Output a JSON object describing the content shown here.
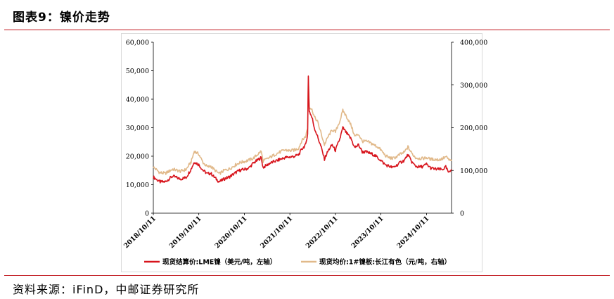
{
  "header": {
    "title": "图表9：镍价走势"
  },
  "footer": {
    "source": "资料来源：iFinD，中邮证券研究所"
  },
  "chart_data": {
    "type": "line",
    "x_tick_labels": [
      "2018/10/11",
      "2019/10/11",
      "2020/10/11",
      "2021/10/11",
      "2022/10/11",
      "2023/10/11",
      "2024/10/11"
    ],
    "x_range": [
      "2018/10/11",
      "2025/04/30"
    ],
    "y_left": {
      "ylim": [
        0,
        60000
      ],
      "ticks": [
        0,
        10000,
        20000,
        30000,
        40000,
        50000,
        60000
      ],
      "tick_labels": [
        "0",
        "10,000",
        "20,000",
        "30,000",
        "40,000",
        "50,000",
        "60,000"
      ]
    },
    "y_right": {
      "ylim": [
        0,
        400000
      ],
      "ticks": [
        0,
        100000,
        200000,
        300000,
        400000
      ],
      "tick_labels": [
        "0",
        "100,000",
        "200,000",
        "300,000",
        "400,000"
      ]
    },
    "grid": false,
    "legend_position": "bottom",
    "series": [
      {
        "name": "现货结算价:LME镍（美元/吨，左轴）",
        "axis": "left",
        "color": "#d7141c",
        "points": [
          [
            "2018/10/11",
            12700
          ],
          [
            "2018/12/01",
            11000
          ],
          [
            "2019/01/15",
            11000
          ],
          [
            "2019/03/15",
            13000
          ],
          [
            "2019/05/15",
            12000
          ],
          [
            "2019/07/01",
            12500
          ],
          [
            "2019/08/10",
            15500
          ],
          [
            "2019/09/05",
            18000
          ],
          [
            "2019/10/11",
            17000
          ],
          [
            "2019/11/15",
            15000
          ],
          [
            "2019/12/20",
            13800
          ],
          [
            "2020/01/15",
            14000
          ],
          [
            "2020/02/15",
            12500
          ],
          [
            "2020/03/23",
            11000
          ],
          [
            "2020/05/01",
            12000
          ],
          [
            "2020/06/15",
            12800
          ],
          [
            "2020/08/01",
            14200
          ],
          [
            "2020/09/01",
            15000
          ],
          [
            "2020/10/11",
            15400
          ],
          [
            "2020/11/15",
            15800
          ],
          [
            "2020/12/20",
            17500
          ],
          [
            "2021/02/22",
            19500
          ],
          [
            "2021/03/10",
            16000
          ],
          [
            "2021/05/01",
            17500
          ],
          [
            "2021/07/01",
            18500
          ],
          [
            "2021/09/01",
            19500
          ],
          [
            "2021/10/11",
            19700
          ],
          [
            "2021/11/20",
            20000
          ],
          [
            "2021/12/20",
            20500
          ],
          [
            "2022/01/15",
            22500
          ],
          [
            "2022/02/15",
            24000
          ],
          [
            "2022/03/02",
            28000
          ],
          [
            "2022/03/08",
            48000
          ],
          [
            "2022/03/15",
            36000
          ],
          [
            "2022/04/10",
            33000
          ],
          [
            "2022/04/25",
            30000
          ],
          [
            "2022/05/20",
            27000
          ],
          [
            "2022/06/20",
            23000
          ],
          [
            "2022/07/15",
            19000
          ],
          [
            "2022/08/15",
            22000
          ],
          [
            "2022/09/15",
            24000
          ],
          [
            "2022/10/11",
            22000
          ],
          [
            "2022/11/15",
            26000
          ],
          [
            "2022/12/10",
            30000
          ],
          [
            "2023/01/10",
            28000
          ],
          [
            "2023/02/15",
            26000
          ],
          [
            "2023/03/15",
            23000
          ],
          [
            "2023/04/15",
            24000
          ],
          [
            "2023/05/15",
            21500
          ],
          [
            "2023/06/15",
            21500
          ],
          [
            "2023/07/15",
            21000
          ],
          [
            "2023/08/15",
            20500
          ],
          [
            "2023/09/15",
            19500
          ],
          [
            "2023/10/11",
            18500
          ],
          [
            "2023/11/15",
            17000
          ],
          [
            "2023/12/15",
            16500
          ],
          [
            "2024/01/15",
            16000
          ],
          [
            "2024/02/15",
            16800
          ],
          [
            "2024/03/15",
            17800
          ],
          [
            "2024/04/15",
            18500
          ],
          [
            "2024/05/15",
            20500
          ],
          [
            "2024/06/15",
            18000
          ],
          [
            "2024/07/15",
            16500
          ],
          [
            "2024/08/15",
            16200
          ],
          [
            "2024/09/15",
            16400
          ],
          [
            "2024/10/11",
            17200
          ],
          [
            "2024/11/15",
            15800
          ],
          [
            "2024/12/15",
            15500
          ],
          [
            "2025/01/15",
            15400
          ],
          [
            "2025/02/15",
            15300
          ],
          [
            "2025/03/15",
            16200
          ],
          [
            "2025/04/09",
            14000
          ],
          [
            "2025/04/30",
            15400
          ]
        ]
      },
      {
        "name": "现货均价:1#镍板:长江有色（元/吨，右轴）",
        "axis": "right",
        "color": "#e1b98a",
        "points": [
          [
            "2018/10/11",
            108000
          ],
          [
            "2018/12/01",
            95000
          ],
          [
            "2019/01/15",
            93000
          ],
          [
            "2019/03/15",
            103000
          ],
          [
            "2019/05/15",
            98000
          ],
          [
            "2019/07/01",
            102000
          ],
          [
            "2019/08/10",
            120000
          ],
          [
            "2019/09/05",
            145000
          ],
          [
            "2019/10/11",
            138000
          ],
          [
            "2019/11/15",
            118000
          ],
          [
            "2019/12/20",
            108000
          ],
          [
            "2020/01/15",
            110000
          ],
          [
            "2020/02/15",
            101000
          ],
          [
            "2020/03/23",
            92000
          ],
          [
            "2020/05/01",
            100000
          ],
          [
            "2020/06/15",
            104000
          ],
          [
            "2020/08/01",
            113000
          ],
          [
            "2020/09/01",
            118000
          ],
          [
            "2020/10/11",
            121000
          ],
          [
            "2020/11/15",
            124000
          ],
          [
            "2020/12/20",
            128000
          ],
          [
            "2021/02/22",
            145000
          ],
          [
            "2021/03/10",
            122000
          ],
          [
            "2021/05/01",
            130000
          ],
          [
            "2021/07/01",
            140000
          ],
          [
            "2021/09/01",
            148000
          ],
          [
            "2021/10/11",
            146000
          ],
          [
            "2021/11/20",
            148000
          ],
          [
            "2021/12/20",
            152000
          ],
          [
            "2022/01/15",
            170000
          ],
          [
            "2022/02/15",
            180000
          ],
          [
            "2022/03/02",
            200000
          ],
          [
            "2022/03/08",
            320000
          ],
          [
            "2022/03/15",
            250000
          ],
          [
            "2022/04/10",
            240000
          ],
          [
            "2022/04/25",
            225000
          ],
          [
            "2022/05/20",
            215000
          ],
          [
            "2022/06/20",
            185000
          ],
          [
            "2022/07/15",
            160000
          ],
          [
            "2022/08/15",
            180000
          ],
          [
            "2022/09/15",
            195000
          ],
          [
            "2022/10/11",
            190000
          ],
          [
            "2022/11/15",
            215000
          ],
          [
            "2022/12/10",
            240000
          ],
          [
            "2023/01/10",
            225000
          ],
          [
            "2023/02/15",
            205000
          ],
          [
            "2023/03/15",
            180000
          ],
          [
            "2023/04/15",
            185000
          ],
          [
            "2023/05/15",
            168000
          ],
          [
            "2023/06/15",
            168000
          ],
          [
            "2023/07/15",
            165000
          ],
          [
            "2023/08/15",
            160000
          ],
          [
            "2023/09/15",
            155000
          ],
          [
            "2023/10/11",
            148000
          ],
          [
            "2023/11/15",
            135000
          ],
          [
            "2023/12/15",
            130000
          ],
          [
            "2024/01/15",
            128000
          ],
          [
            "2024/02/15",
            132000
          ],
          [
            "2024/03/15",
            138000
          ],
          [
            "2024/04/15",
            142000
          ],
          [
            "2024/05/15",
            155000
          ],
          [
            "2024/06/15",
            140000
          ],
          [
            "2024/07/15",
            130000
          ],
          [
            "2024/08/15",
            128000
          ],
          [
            "2024/09/15",
            128000
          ],
          [
            "2024/10/11",
            130000
          ],
          [
            "2024/11/15",
            126000
          ],
          [
            "2024/12/15",
            126000
          ],
          [
            "2025/01/15",
            125000
          ],
          [
            "2025/02/15",
            127000
          ],
          [
            "2025/03/15",
            132000
          ],
          [
            "2025/04/09",
            125000
          ],
          [
            "2025/04/30",
            122000
          ]
        ]
      }
    ]
  }
}
